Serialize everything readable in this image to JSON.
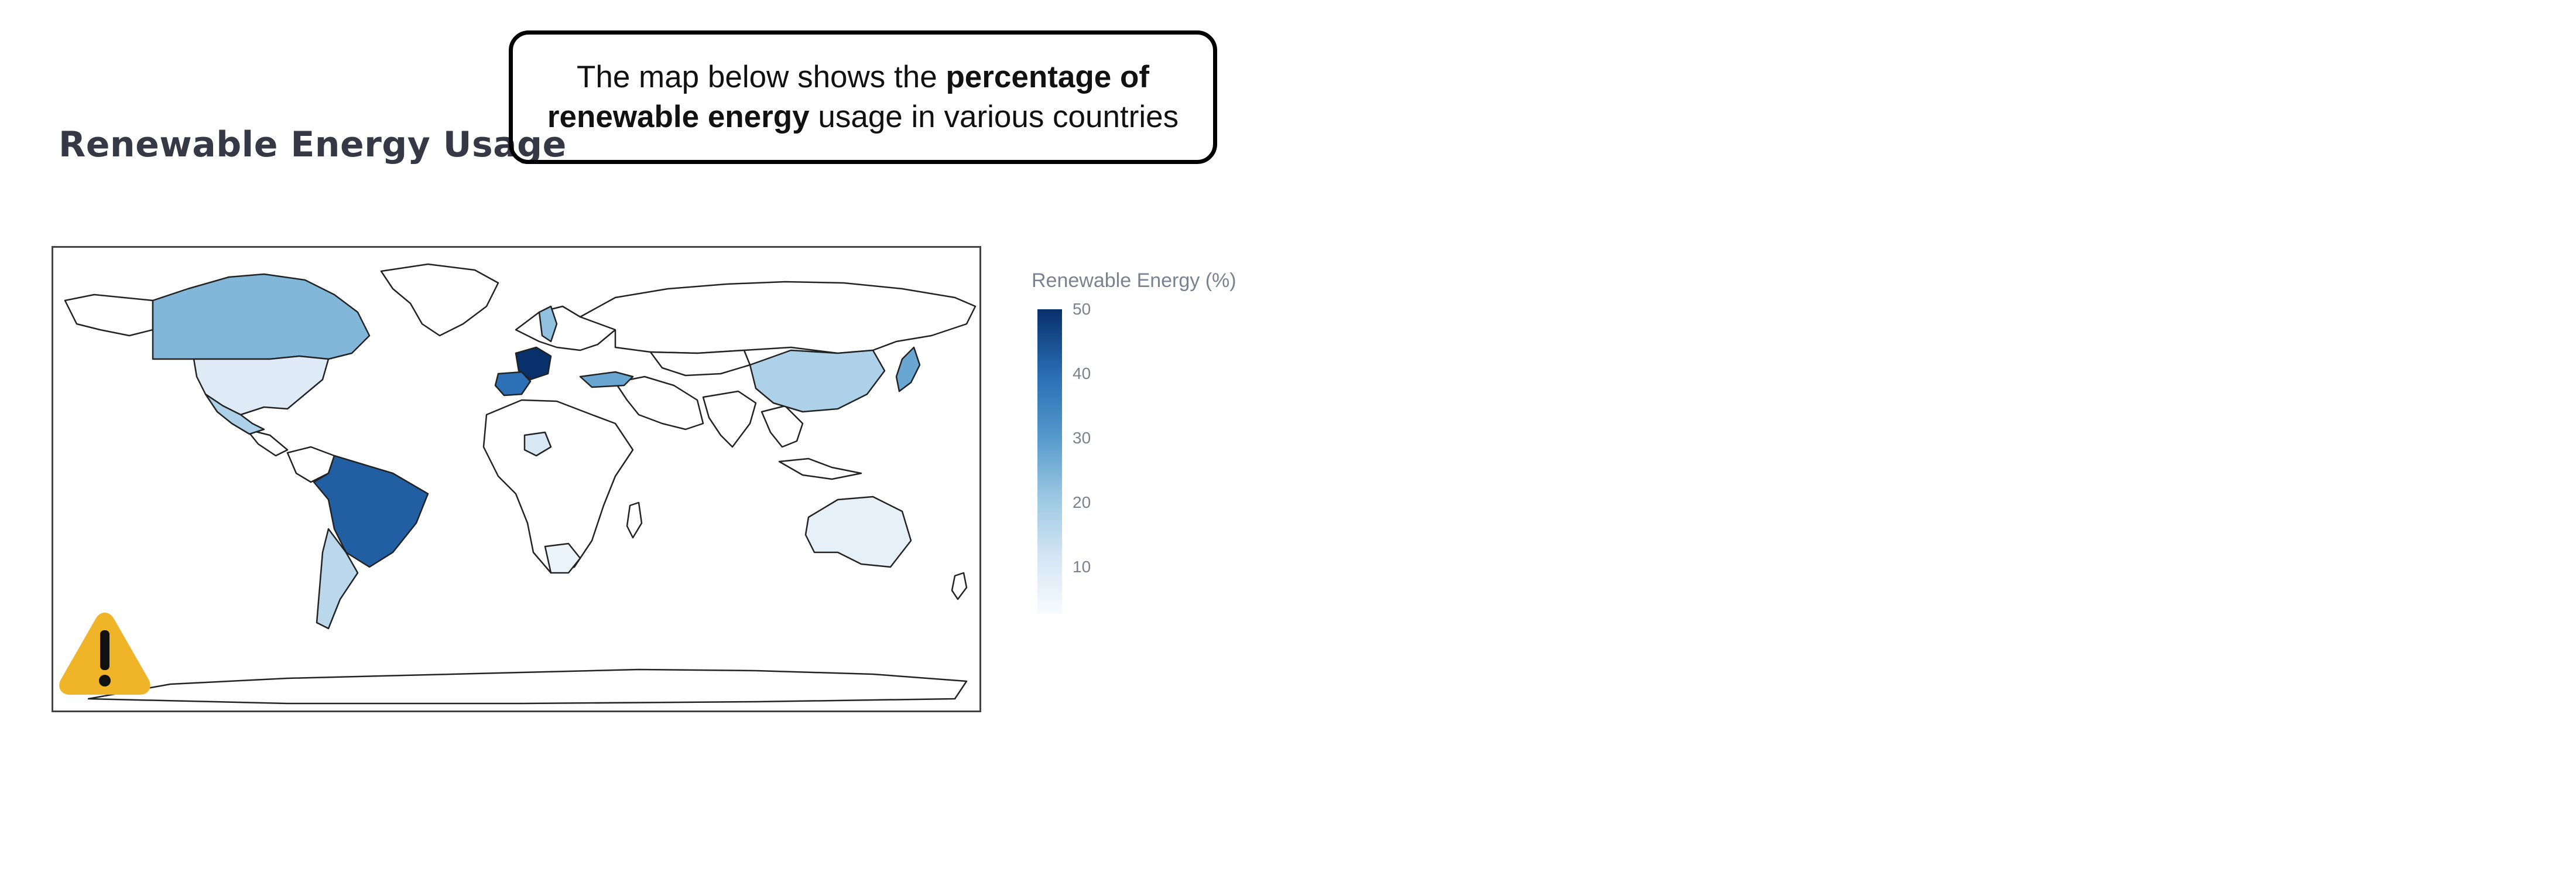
{
  "title": "Renewable Energy Usage",
  "callout": {
    "prefix": "The map below shows the ",
    "bold1": "percentage of",
    "bold2": "renewable energy",
    "suffix": " usage in various countries"
  },
  "colorbar": {
    "title": "Renewable Energy (%)",
    "ticks": [
      "50",
      "40",
      "30",
      "20",
      "10"
    ],
    "range": [
      5,
      52
    ],
    "colorscale": [
      "#f7fbff",
      "#d6e6f4",
      "#9cc8e3",
      "#4f95c9",
      "#2a6fb5",
      "#08306b"
    ]
  },
  "countries": [
    {
      "name": "France",
      "value": 52
    },
    {
      "name": "Spain",
      "value": 42
    },
    {
      "name": "Brazil",
      "value": 45
    },
    {
      "name": "Canada",
      "value": 27
    },
    {
      "name": "Sweden",
      "value": 25
    },
    {
      "name": "Japan",
      "value": 30
    },
    {
      "name": "Turkey",
      "value": 30
    },
    {
      "name": "China",
      "value": 21
    },
    {
      "name": "Mexico",
      "value": 21
    },
    {
      "name": "Argentina",
      "value": 19
    },
    {
      "name": "United States",
      "value": 12
    },
    {
      "name": "Australia",
      "value": 10
    },
    {
      "name": "South Africa",
      "value": 8
    },
    {
      "name": "Nigeria",
      "value": 14
    }
  ],
  "warning_icon": "warning-triangle-icon"
}
